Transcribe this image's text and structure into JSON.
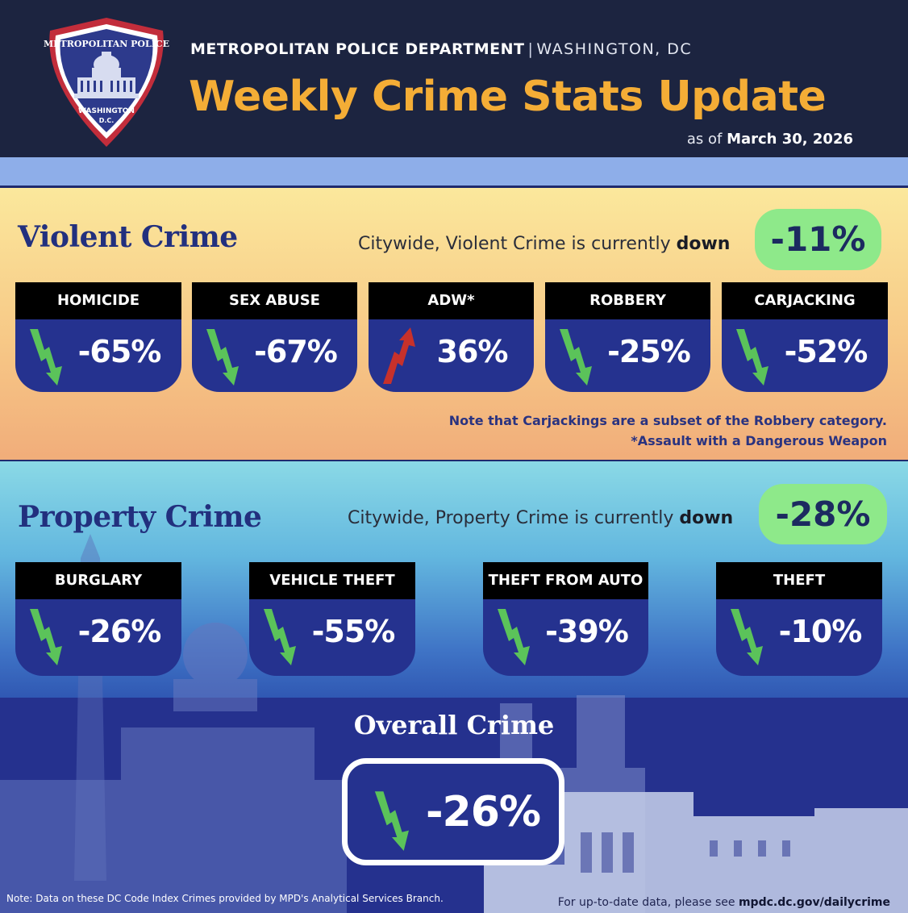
{
  "header": {
    "department": "METROPOLITAN POLICE DEPARTMENT",
    "separator": "|",
    "city": "WASHINGTON, DC",
    "title": "Weekly Crime Stats Update",
    "as_of_prefix": "as of",
    "as_of_date": "March 30, 2026",
    "badge": {
      "top_text": "METROPOLITAN POLICE",
      "bottom_text": "WASHINGTON",
      "bottom_sub": "D.C.",
      "icon": "capitol-building-icon"
    }
  },
  "violent": {
    "title": "Violent Crime",
    "citywide_prefix": "Citywide, Violent Crime is currently",
    "direction": "down",
    "overall": "-11%",
    "categories": [
      {
        "label": "HOMICIDE",
        "value": "-65%",
        "trend": "down"
      },
      {
        "label": "SEX ABUSE",
        "value": "-67%",
        "trend": "down"
      },
      {
        "label": "ADW*",
        "value": "36%",
        "trend": "up"
      },
      {
        "label": "ROBBERY",
        "value": "-25%",
        "trend": "down"
      },
      {
        "label": "CARJACKING",
        "value": "-52%",
        "trend": "down"
      }
    ],
    "note1": "Note that Carjackings are a subset of the Robbery category.",
    "note2": "*Assault with a Dangerous Weapon"
  },
  "property": {
    "title": "Property Crime",
    "citywide_prefix": "Citywide, Property Crime is currently",
    "direction": "down",
    "overall": "-28%",
    "categories": [
      {
        "label": "BURGLARY",
        "value": "-26%",
        "trend": "down"
      },
      {
        "label": "VEHICLE THEFT",
        "value": "-55%",
        "trend": "down"
      },
      {
        "label": "THEFT FROM AUTO",
        "value": "-39%",
        "trend": "down"
      },
      {
        "label": "THEFT",
        "value": "-10%",
        "trend": "down"
      }
    ]
  },
  "overall": {
    "title": "Overall Crime",
    "value": "-26%",
    "trend": "down"
  },
  "footer": {
    "note": "Note: Data on these DC Code Index Crimes provided by MPD's Analytical Services Branch.",
    "link_prefix": "For up-to-date data, please see",
    "link": "mpdc.dc.gov/dailycrime"
  },
  "colors": {
    "header_bg": "#1c2440",
    "title_orange": "#f4ad36",
    "card_blue": "#25328f",
    "pill_green": "#8ee98a",
    "down_arrow": "#5bc35a",
    "up_arrow": "#c7312b"
  }
}
